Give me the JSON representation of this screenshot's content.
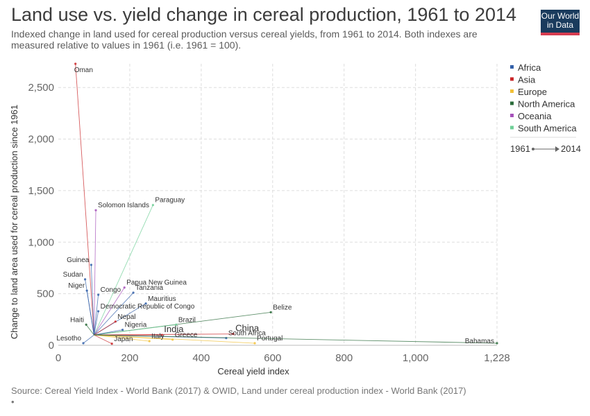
{
  "header": {
    "title": "Land use vs. yield change in cereal production, 1961 to 2014",
    "subtitle": "Indexed change in land used for cereal production versus cereal yields, from 1961 to 2014. Both indexes are measured relative to values in 1961 (i.e. 1961 = 100).",
    "logo_line1": "Our World",
    "logo_line2": "in Data"
  },
  "footer": {
    "source": "Source: Cereal Yield Index - World Bank (2017) & OWID, Land under cereal production index - World Bank (2017)",
    "dot": "•"
  },
  "chart_data": {
    "type": "scatter",
    "title": "Land use vs. yield change in cereal production, 1961 to 2014",
    "xlabel": "Cereal yield index",
    "ylabel": "Change to land area used for cereal production since 1961",
    "xlim": [
      0,
      1228
    ],
    "ylim": [
      0,
      2730
    ],
    "xticks": [
      0,
      200,
      400,
      600,
      800,
      1000,
      1228
    ],
    "xtick_labels": [
      "0",
      "200",
      "400",
      "600",
      "800",
      "1,000",
      "1,228"
    ],
    "yticks": [
      0,
      500,
      1000,
      1500,
      2000,
      2500
    ],
    "ytick_labels": [
      "0",
      "500",
      "1,000",
      "1,500",
      "2,000",
      "2,500"
    ],
    "grid": true,
    "legend_position": "right",
    "start_year": "1961",
    "end_year": "2014",
    "legend": [
      {
        "name": "Africa",
        "color": "#3360a9"
      },
      {
        "name": "Asia",
        "color": "#ca2628"
      },
      {
        "name": "Europe",
        "color": "#f2c037"
      },
      {
        "name": "North America",
        "color": "#2a6b3a"
      },
      {
        "name": "Oceania",
        "color": "#a652ba"
      },
      {
        "name": "South America",
        "color": "#6fcf97"
      }
    ],
    "labeled_points": [
      {
        "name": "Oman",
        "region": "Asia",
        "start": [
          100,
          100
        ],
        "end": [
          48,
          2730
        ]
      },
      {
        "name": "Solomon Islands",
        "region": "Oceania",
        "start": [
          100,
          100
        ],
        "end": [
          105,
          1310
        ]
      },
      {
        "name": "Paraguay",
        "region": "South America",
        "start": [
          100,
          100
        ],
        "end": [
          265,
          1360
        ]
      },
      {
        "name": "Guinea",
        "region": "Africa",
        "start": [
          100,
          100
        ],
        "end": [
          92,
          780
        ]
      },
      {
        "name": "Sudan",
        "region": "Africa",
        "start": [
          100,
          100
        ],
        "end": [
          75,
          640
        ]
      },
      {
        "name": "Niger",
        "region": "Africa",
        "start": [
          100,
          100
        ],
        "end": [
          80,
          530
        ]
      },
      {
        "name": "Congo",
        "region": "Africa",
        "start": [
          100,
          100
        ],
        "end": [
          112,
          490
        ]
      },
      {
        "name": "Papua New Guinea",
        "region": "Oceania",
        "start": [
          100,
          100
        ],
        "end": [
          185,
          560
        ]
      },
      {
        "name": "Tanzania",
        "region": "Africa",
        "start": [
          100,
          100
        ],
        "end": [
          210,
          510
        ]
      },
      {
        "name": "Mauritius",
        "region": "Africa",
        "start": [
          100,
          100
        ],
        "end": [
          245,
          405
        ]
      },
      {
        "name": "Democratic Republic of Congo",
        "region": "Africa",
        "start": [
          100,
          100
        ],
        "end": [
          112,
          330
        ]
      },
      {
        "name": "Belize",
        "region": "North America",
        "start": [
          100,
          100
        ],
        "end": [
          595,
          320
        ]
      },
      {
        "name": "Nepal",
        "region": "Asia",
        "start": [
          100,
          100
        ],
        "end": [
          160,
          230
        ]
      },
      {
        "name": "Brazil",
        "region": "South America",
        "start": [
          100,
          100
        ],
        "end": [
          330,
          200
        ]
      },
      {
        "name": "Haiti",
        "region": "North America",
        "start": [
          100,
          100
        ],
        "end": [
          78,
          200
        ]
      },
      {
        "name": "Nigeria",
        "region": "Africa",
        "start": [
          100,
          100
        ],
        "end": [
          180,
          150
        ]
      },
      {
        "name": "India",
        "region": "Asia",
        "start": [
          100,
          100
        ],
        "end": [
          290,
          100
        ]
      },
      {
        "name": "China",
        "region": "Asia",
        "start": [
          100,
          100
        ],
        "end": [
          490,
          110
        ]
      },
      {
        "name": "Lesotho",
        "region": "Africa",
        "start": [
          100,
          100
        ],
        "end": [
          70,
          20
        ]
      },
      {
        "name": "Japan",
        "region": "Asia",
        "start": [
          100,
          100
        ],
        "end": [
          150,
          15
        ]
      },
      {
        "name": "Italy",
        "region": "Europe",
        "start": [
          100,
          100
        ],
        "end": [
          255,
          40
        ]
      },
      {
        "name": "Greece",
        "region": "Europe",
        "start": [
          100,
          100
        ],
        "end": [
          320,
          55
        ]
      },
      {
        "name": "South Africa",
        "region": "Africa",
        "start": [
          100,
          100
        ],
        "end": [
          470,
          70
        ]
      },
      {
        "name": "Portugal",
        "region": "Europe",
        "start": [
          100,
          100
        ],
        "end": [
          550,
          20
        ]
      },
      {
        "name": "Bahamas",
        "region": "North America",
        "start": [
          100,
          100
        ],
        "end": [
          1228,
          20
        ]
      }
    ]
  }
}
